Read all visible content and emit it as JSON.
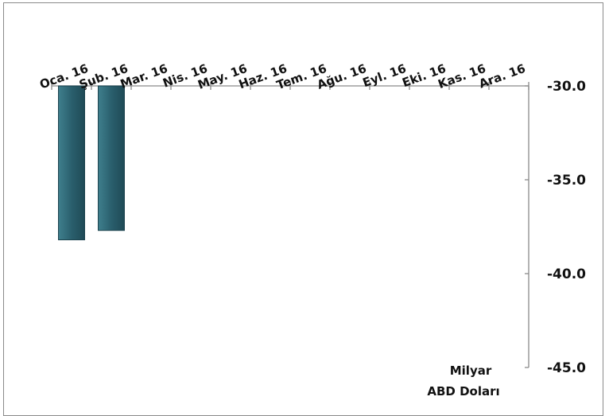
{
  "chart_data": {
    "type": "bar",
    "categories": [
      "Oca. 16",
      "Şub. 16",
      "Mar. 16",
      "Nis. 16",
      "May. 16",
      "Haz. 16",
      "Tem. 16",
      "Ağu. 16",
      "Eyl. 16",
      "Eki. 16",
      "Kas. 16",
      "Ara. 16"
    ],
    "series": [
      {
        "values": [
          -38.2,
          -37.7,
          null,
          null,
          null,
          null,
          null,
          null,
          null,
          null,
          null,
          null
        ],
        "color": "#2a5f6d"
      }
    ],
    "yaxis": {
      "ticks": [
        "-30.0",
        "-35.0",
        "-40.0",
        "-45.0"
      ],
      "ylim": [
        -45,
        -30
      ],
      "position": "right",
      "inverted": true
    },
    "unit_label": [
      "Milyar",
      "ABD Doları"
    ],
    "grid": false,
    "legend": "none"
  }
}
